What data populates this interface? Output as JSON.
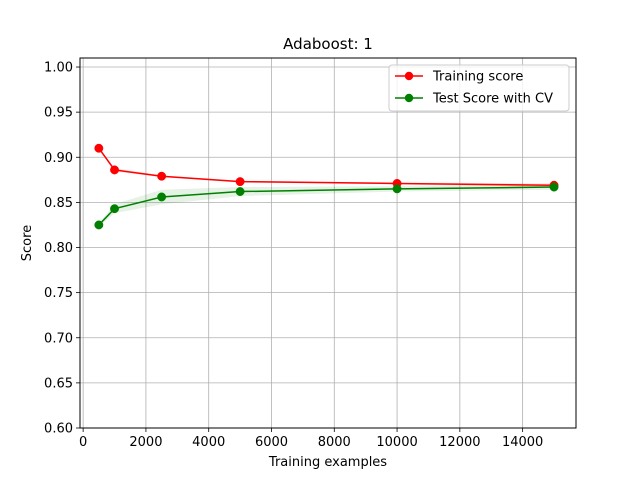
{
  "chart_data": {
    "type": "line",
    "title": "Adaboost: 1",
    "xlabel": "Training examples",
    "ylabel": "Score",
    "xlim": [
      -100,
      15700
    ],
    "ylim": [
      0.6,
      1.01
    ],
    "xticks": [
      0,
      2000,
      4000,
      6000,
      8000,
      10000,
      12000,
      14000
    ],
    "xtick_labels": [
      "0",
      "2000",
      "4000",
      "6000",
      "8000",
      "10000",
      "12000",
      "14000"
    ],
    "yticks": [
      0.6,
      0.65,
      0.7,
      0.75,
      0.8,
      0.85,
      0.9,
      0.95,
      1.0
    ],
    "ytick_labels": [
      "0.60",
      "0.65",
      "0.70",
      "0.75",
      "0.80",
      "0.85",
      "0.90",
      "0.95",
      "1.00"
    ],
    "grid": true,
    "legend_position": "top-right",
    "x": [
      500,
      1000,
      2500,
      5000,
      10000,
      15000
    ],
    "series": [
      {
        "name": "Training score",
        "color": "#ff0000",
        "band_color": "#ff0000",
        "values": [
          0.91,
          0.886,
          0.879,
          0.873,
          0.871,
          0.869
        ],
        "band_lower": [
          0.909,
          0.884,
          0.878,
          0.872,
          0.87,
          0.867
        ],
        "band_upper": [
          0.911,
          0.888,
          0.88,
          0.874,
          0.872,
          0.871
        ]
      },
      {
        "name": "Test Score with CV",
        "color": "#008000",
        "band_color": "#008000",
        "values": [
          0.825,
          0.843,
          0.856,
          0.862,
          0.865,
          0.867
        ],
        "band_lower": [
          0.823,
          0.838,
          0.848,
          0.857,
          0.862,
          0.864
        ],
        "band_upper": [
          0.827,
          0.848,
          0.864,
          0.867,
          0.868,
          0.87
        ]
      }
    ]
  }
}
